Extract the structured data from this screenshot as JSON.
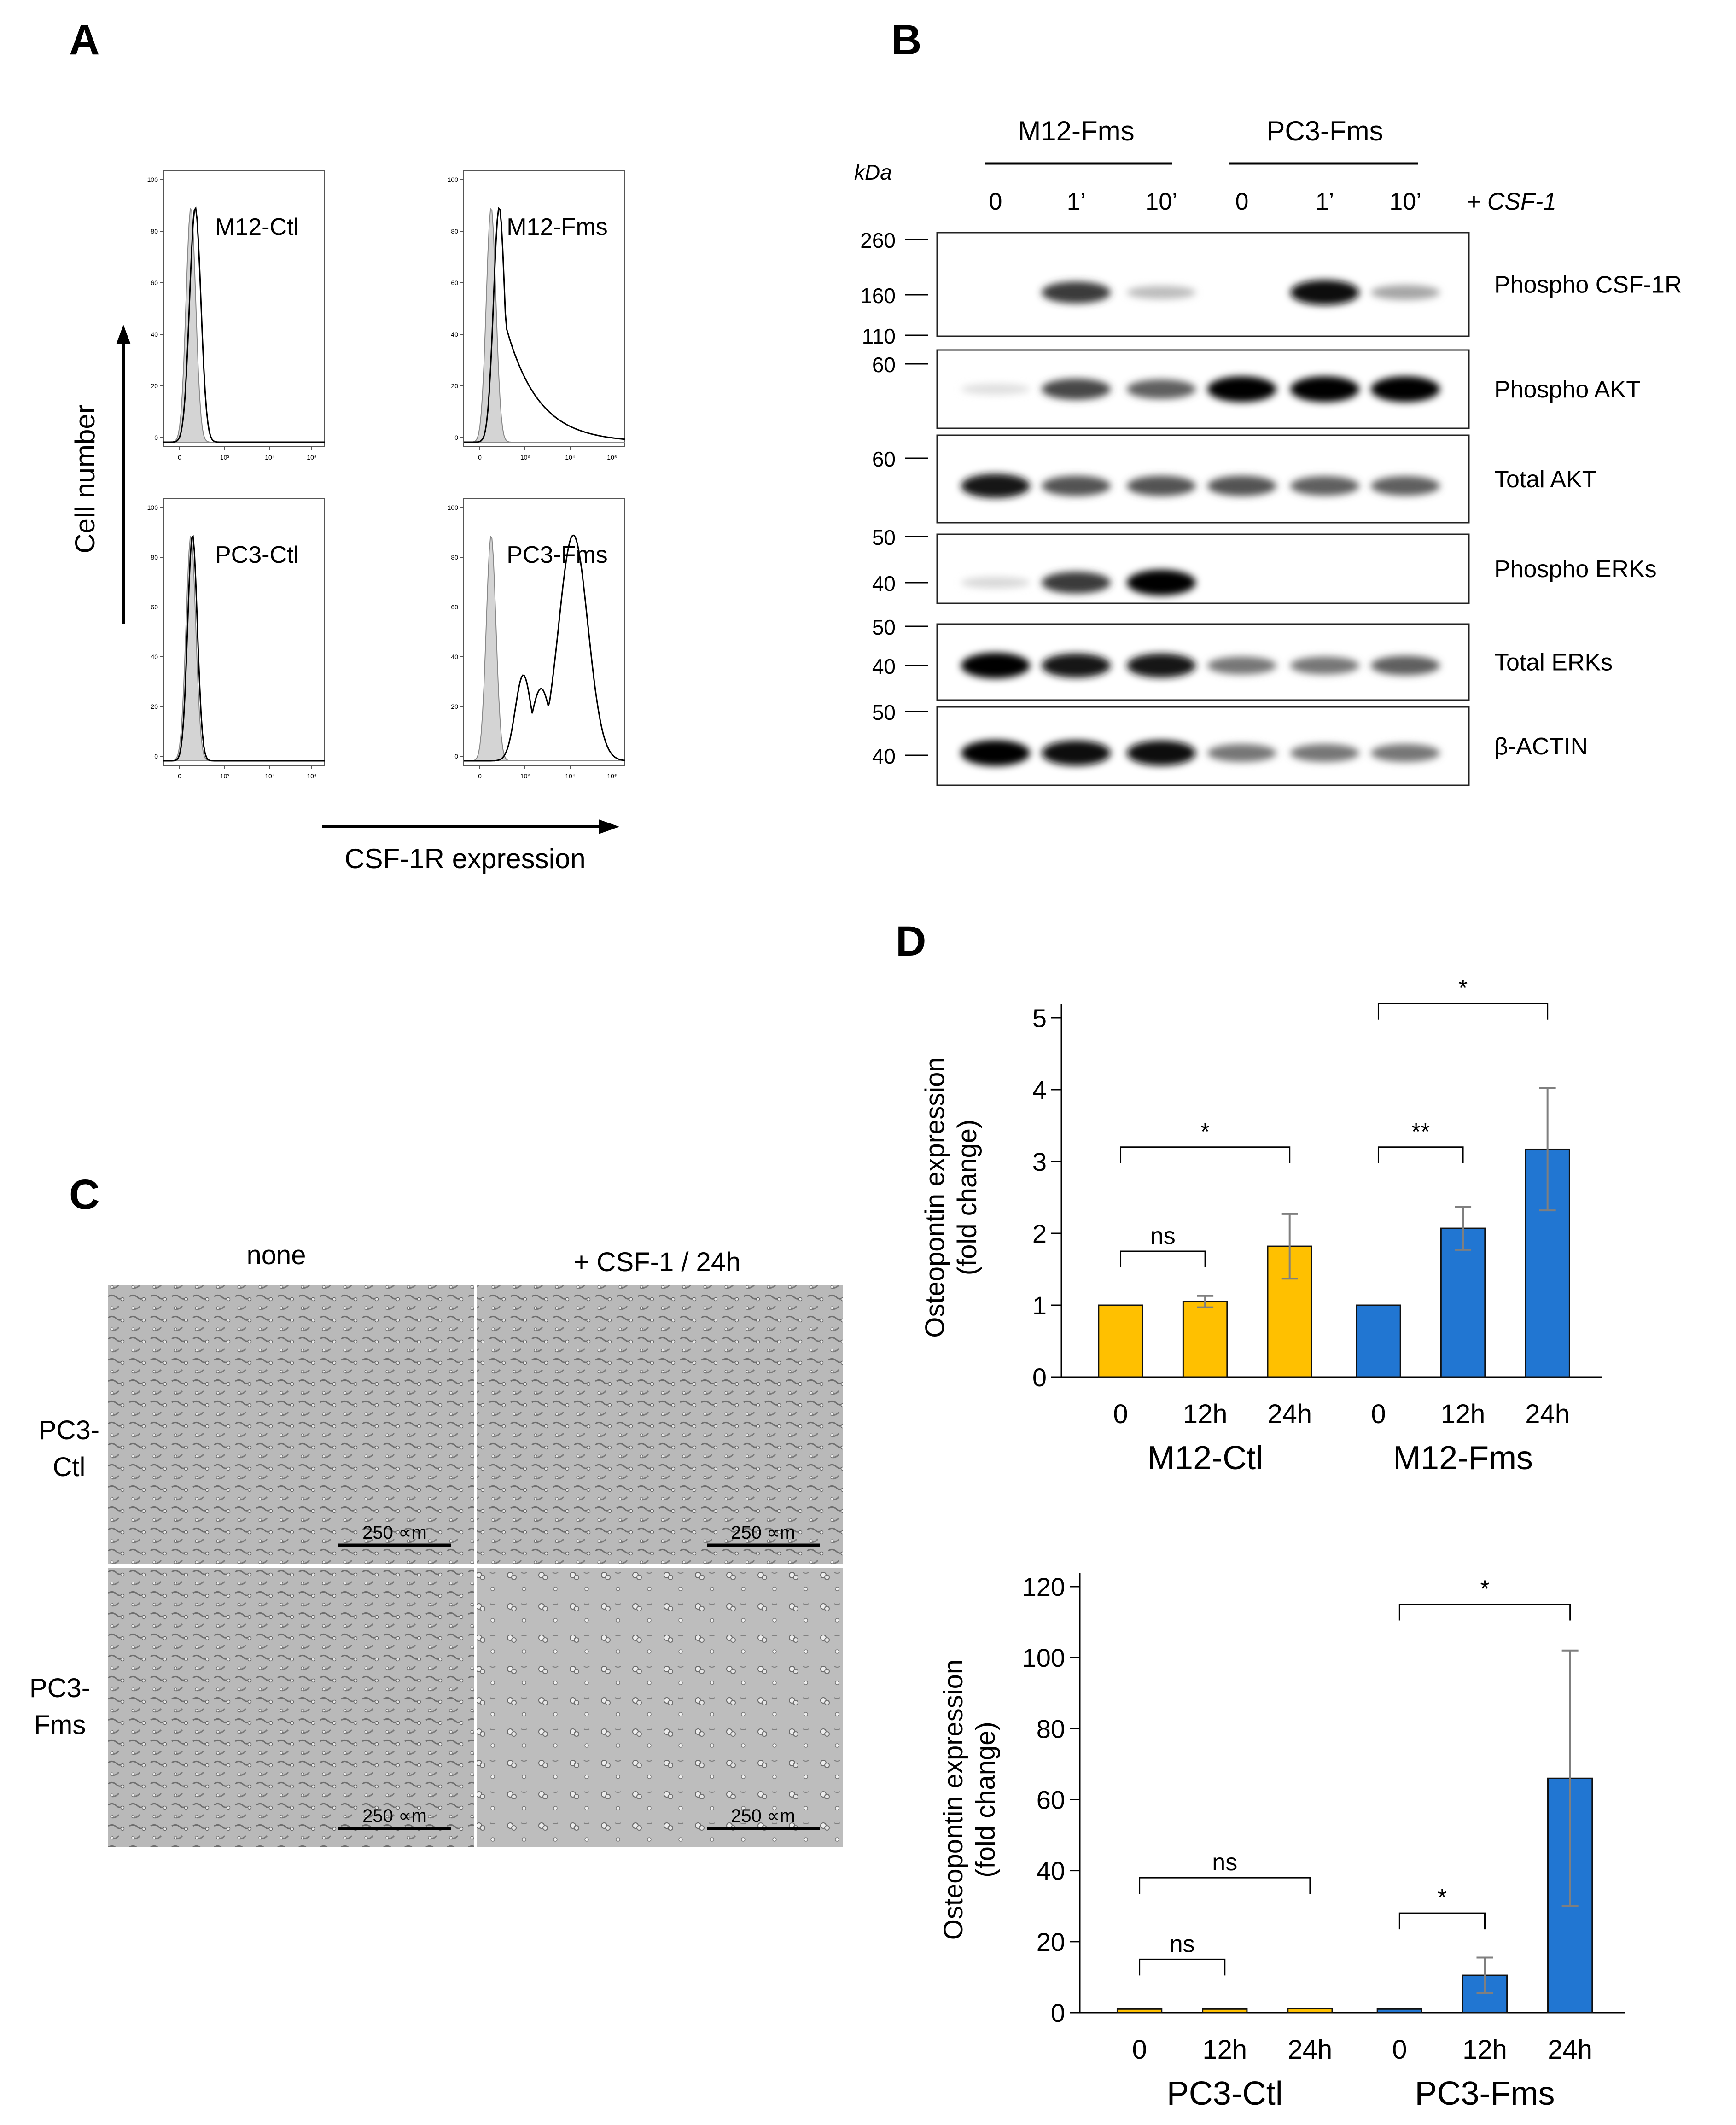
{
  "panels": {
    "A": {
      "label": "A",
      "y_axis_label": "Cell number",
      "x_axis_label": "CSF-1R expression",
      "y_ticks": [
        "0",
        "20",
        "40",
        "60",
        "80",
        "100"
      ],
      "x_ticks": [
        "0",
        "10³",
        "10⁴",
        "10⁵"
      ],
      "histograms": [
        {
          "name": "M12-Ctl",
          "shift": 0.06,
          "spread": "narrow"
        },
        {
          "name": "M12-Fms",
          "shift": 0.08,
          "spread": "tail"
        },
        {
          "name": "PC3-Ctl",
          "shift": 0.0,
          "spread": "overlap"
        },
        {
          "name": "PC3-Fms",
          "shift": 0.55,
          "spread": "bimodal"
        }
      ]
    },
    "B": {
      "label": "B",
      "kda_label": "kDa",
      "treatment_label": "+ CSF-1",
      "groups": [
        "M12-Fms",
        "PC3-Fms"
      ],
      "time_points": [
        "0",
        "1’",
        "10’",
        "0",
        "1’",
        "10’"
      ],
      "blots": [
        {
          "name": "Phospho CSF-1R",
          "markers": [
            "260",
            "160",
            "110"
          ],
          "bands": [
            0,
            0.75,
            0.2,
            0,
            0.95,
            0.3
          ]
        },
        {
          "name": "Phospho AKT",
          "markers": [
            "60"
          ],
          "bands": [
            0.05,
            0.7,
            0.6,
            1.0,
            1.0,
            1.0
          ]
        },
        {
          "name": "Total AKT",
          "markers": [
            "60"
          ],
          "bands": [
            0.9,
            0.65,
            0.65,
            0.65,
            0.6,
            0.6
          ]
        },
        {
          "name": "Phospho ERKs",
          "markers": [
            "50",
            "40"
          ],
          "bands": [
            0.08,
            0.75,
            1.0,
            0,
            0,
            0
          ]
        },
        {
          "name": "Total ERKs",
          "markers": [
            "50",
            "40"
          ],
          "bands": [
            1.0,
            0.9,
            0.9,
            0.5,
            0.5,
            0.6
          ]
        },
        {
          "name": "β-ACTIN",
          "markers": [
            "50",
            "40"
          ],
          "bands": [
            1.0,
            0.95,
            0.95,
            0.5,
            0.5,
            0.5
          ]
        }
      ]
    },
    "C": {
      "label": "C",
      "columns": [
        "none",
        "+ CSF-1 / 24h"
      ],
      "rows": [
        "PC3-\nCtl",
        "PC3-\nFms"
      ],
      "row_lines": [
        [
          "PC3-",
          "Ctl"
        ],
        [
          "PC3-",
          "Fms"
        ]
      ],
      "scale_bar": "250 ∝m"
    },
    "D": {
      "label": "D"
    }
  },
  "chart_data": [
    {
      "type": "bar",
      "title": "",
      "ylabel": "Osteopontin expression (fold change)",
      "ylabel_lines": [
        "Osteopontin expression",
        "(fold change)"
      ],
      "ylim": [
        0,
        5
      ],
      "yticks": [
        "0",
        "1",
        "2",
        "3",
        "4",
        "5"
      ],
      "groups": [
        {
          "name": "M12-Ctl",
          "color": "#FFC000",
          "categories": [
            "0",
            "12h",
            "24h"
          ],
          "values": [
            1.0,
            1.05,
            1.82
          ],
          "errors": [
            0,
            0.08,
            0.45
          ]
        },
        {
          "name": "M12-Fms",
          "color": "#2176D2",
          "categories": [
            "0",
            "12h",
            "24h"
          ],
          "values": [
            1.0,
            2.07,
            3.17
          ],
          "errors": [
            0,
            0.3,
            0.85
          ]
        }
      ],
      "significance": [
        {
          "label": "ns",
          "from": [
            0,
            0
          ],
          "to": [
            0,
            1
          ],
          "y": 1.75
        },
        {
          "label": "*",
          "from": [
            0,
            0
          ],
          "to": [
            0,
            2
          ],
          "y": 3.2
        },
        {
          "label": "**",
          "from": [
            1,
            0
          ],
          "to": [
            1,
            1
          ],
          "y": 3.2
        },
        {
          "label": "*",
          "from": [
            1,
            0
          ],
          "to": [
            1,
            2
          ],
          "y": 5.2
        }
      ]
    },
    {
      "type": "bar",
      "title": "",
      "ylabel": "Osteopontin expression (fold change)",
      "ylabel_lines": [
        "Osteopontin expression",
        "(fold change)"
      ],
      "ylim": [
        0,
        120
      ],
      "yticks": [
        "0",
        "20",
        "40",
        "60",
        "80",
        "100",
        "120"
      ],
      "groups": [
        {
          "name": "PC3-Ctl",
          "color": "#FFC000",
          "categories": [
            "0",
            "12h",
            "24h"
          ],
          "values": [
            1.0,
            1.0,
            1.2
          ],
          "errors": [
            0,
            0,
            0
          ]
        },
        {
          "name": "PC3-Fms",
          "color": "#2176D2",
          "categories": [
            "0",
            "12h",
            "24h"
          ],
          "values": [
            1.0,
            10.5,
            66.0
          ],
          "errors": [
            0,
            5.0,
            36.0
          ]
        }
      ],
      "significance": [
        {
          "label": "ns",
          "from": [
            0,
            0
          ],
          "to": [
            0,
            1
          ],
          "y": 15
        },
        {
          "label": "ns",
          "from": [
            0,
            0
          ],
          "to": [
            0,
            2
          ],
          "y": 38
        },
        {
          "label": "*",
          "from": [
            1,
            0
          ],
          "to": [
            1,
            1
          ],
          "y": 28
        },
        {
          "label": "*",
          "from": [
            1,
            0
          ],
          "to": [
            1,
            2
          ],
          "y": 115
        }
      ]
    }
  ]
}
